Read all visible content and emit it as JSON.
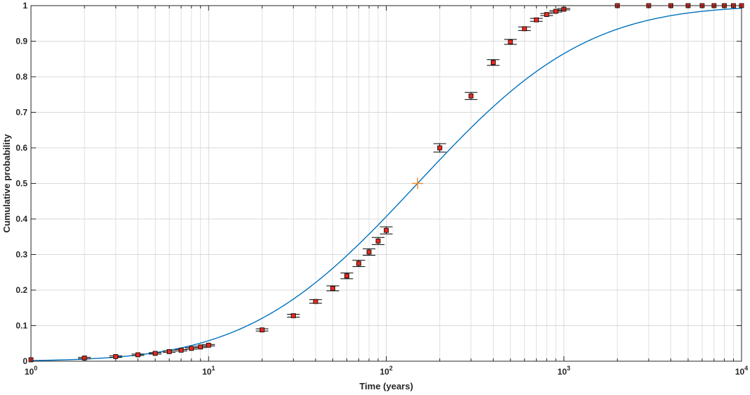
{
  "chart_data": {
    "type": "scatter",
    "title": "",
    "xlabel": "Time (years)",
    "ylabel": "Cumulative probability",
    "xscale": "log",
    "xlim": [
      1,
      10000
    ],
    "ylim": [
      0,
      1
    ],
    "grid": true,
    "x_ticks": [
      {
        "value": 1,
        "base": "10",
        "exp": "0"
      },
      {
        "value": 10,
        "base": "10",
        "exp": "1"
      },
      {
        "value": 100,
        "base": "10",
        "exp": "2"
      },
      {
        "value": 1000,
        "base": "10",
        "exp": "3"
      },
      {
        "value": 10000,
        "base": "10",
        "exp": "4"
      }
    ],
    "y_ticks": [
      {
        "value": 0,
        "label": "0"
      },
      {
        "value": 0.1,
        "label": "0.1"
      },
      {
        "value": 0.2,
        "label": "0.2"
      },
      {
        "value": 0.3,
        "label": "0.3"
      },
      {
        "value": 0.4,
        "label": "0.4"
      },
      {
        "value": 0.5,
        "label": "0.5"
      },
      {
        "value": 0.6,
        "label": "0.6"
      },
      {
        "value": 0.7,
        "label": "0.7"
      },
      {
        "value": 0.8,
        "label": "0.8"
      },
      {
        "value": 0.9,
        "label": "0.9"
      },
      {
        "value": 1,
        "label": "1"
      }
    ],
    "colors": {
      "curve": "#0072bd",
      "marker_fill": "#e8281e",
      "marker_edge": "#000000",
      "errorbar": "#000000",
      "median_marker": "#f28b30",
      "grid": "#d9d9d9",
      "axes": "#262626"
    },
    "fitted_curve": {
      "median": 150,
      "lognormal_sigma": 1.72
    },
    "median_point": {
      "x": 150,
      "y": 0.5
    },
    "points": [
      {
        "x": 1,
        "y": 0.004,
        "err": 0.0
      },
      {
        "x": 2,
        "y": 0.009,
        "err": 0.002
      },
      {
        "x": 3,
        "y": 0.013,
        "err": 0.002
      },
      {
        "x": 4,
        "y": 0.018,
        "err": 0.002
      },
      {
        "x": 5,
        "y": 0.022,
        "err": 0.002
      },
      {
        "x": 6,
        "y": 0.027,
        "err": 0.002
      },
      {
        "x": 7,
        "y": 0.031,
        "err": 0.002
      },
      {
        "x": 8,
        "y": 0.036,
        "err": 0.002
      },
      {
        "x": 9,
        "y": 0.04,
        "err": 0.002
      },
      {
        "x": 10,
        "y": 0.045,
        "err": 0.002
      },
      {
        "x": 20,
        "y": 0.088,
        "err": 0.003
      },
      {
        "x": 30,
        "y": 0.128,
        "err": 0.004
      },
      {
        "x": 40,
        "y": 0.168,
        "err": 0.005
      },
      {
        "x": 50,
        "y": 0.205,
        "err": 0.007
      },
      {
        "x": 60,
        "y": 0.24,
        "err": 0.008
      },
      {
        "x": 70,
        "y": 0.275,
        "err": 0.009
      },
      {
        "x": 80,
        "y": 0.307,
        "err": 0.009
      },
      {
        "x": 90,
        "y": 0.338,
        "err": 0.01
      },
      {
        "x": 100,
        "y": 0.368,
        "err": 0.01
      },
      {
        "x": 200,
        "y": 0.6,
        "err": 0.012
      },
      {
        "x": 300,
        "y": 0.746,
        "err": 0.01
      },
      {
        "x": 400,
        "y": 0.84,
        "err": 0.008
      },
      {
        "x": 500,
        "y": 0.898,
        "err": 0.007
      },
      {
        "x": 600,
        "y": 0.935,
        "err": 0.005
      },
      {
        "x": 700,
        "y": 0.96,
        "err": 0.004
      },
      {
        "x": 800,
        "y": 0.975,
        "err": 0.003
      },
      {
        "x": 900,
        "y": 0.984,
        "err": 0.002
      },
      {
        "x": 1000,
        "y": 0.99,
        "err": 0.002
      },
      {
        "x": 2000,
        "y": 1.0,
        "err": 0.0
      },
      {
        "x": 3000,
        "y": 1.0,
        "err": 0.0
      },
      {
        "x": 4000,
        "y": 1.0,
        "err": 0.0
      },
      {
        "x": 5000,
        "y": 1.0,
        "err": 0.0
      },
      {
        "x": 6000,
        "y": 1.0,
        "err": 0.0
      },
      {
        "x": 7000,
        "y": 1.0,
        "err": 0.0
      },
      {
        "x": 8000,
        "y": 1.0,
        "err": 0.0
      },
      {
        "x": 9000,
        "y": 1.0,
        "err": 0.0
      },
      {
        "x": 10000,
        "y": 1.0,
        "err": 0.0
      }
    ]
  }
}
